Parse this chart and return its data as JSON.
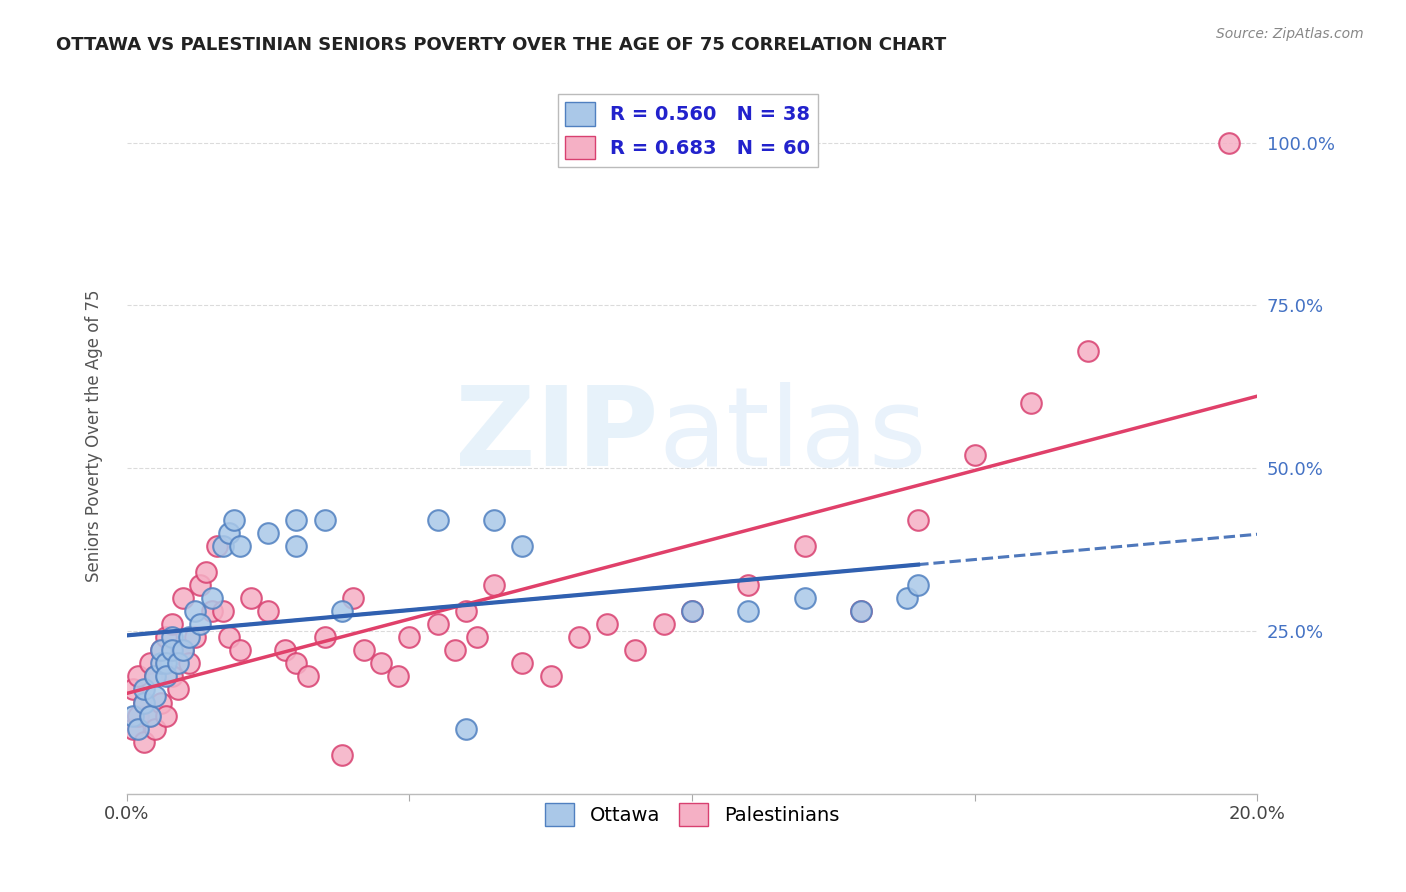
{
  "title": "OTTAWA VS PALESTINIAN SENIORS POVERTY OVER THE AGE OF 75 CORRELATION CHART",
  "source": "Source: ZipAtlas.com",
  "ylabel": "Seniors Poverty Over the Age of 75",
  "xlim": [
    0.0,
    0.2
  ],
  "ylim": [
    0.0,
    1.1
  ],
  "ottawa_R": 0.56,
  "ottawa_N": 38,
  "palestinians_R": 0.683,
  "palestinians_N": 60,
  "ottawa_color": "#aac8e8",
  "ottawa_edge_color": "#5080c0",
  "palestinians_color": "#f5b0c5",
  "palestinians_edge_color": "#d84070",
  "ottawa_line_color": "#3060b0",
  "palestinians_line_color": "#e0406a",
  "background_color": "#ffffff",
  "grid_color": "#cccccc",
  "ottawa_x": [
    0.001,
    0.002,
    0.003,
    0.003,
    0.004,
    0.005,
    0.005,
    0.006,
    0.006,
    0.007,
    0.007,
    0.008,
    0.008,
    0.009,
    0.01,
    0.011,
    0.012,
    0.013,
    0.015,
    0.017,
    0.018,
    0.019,
    0.02,
    0.025,
    0.03,
    0.03,
    0.035,
    0.038,
    0.055,
    0.06,
    0.065,
    0.07,
    0.1,
    0.11,
    0.12,
    0.13,
    0.138,
    0.14
  ],
  "ottawa_y": [
    0.12,
    0.1,
    0.14,
    0.16,
    0.12,
    0.18,
    0.15,
    0.2,
    0.22,
    0.2,
    0.18,
    0.24,
    0.22,
    0.2,
    0.22,
    0.24,
    0.28,
    0.26,
    0.3,
    0.38,
    0.4,
    0.42,
    0.38,
    0.4,
    0.38,
    0.42,
    0.42,
    0.28,
    0.42,
    0.1,
    0.42,
    0.38,
    0.28,
    0.28,
    0.3,
    0.28,
    0.3,
    0.32
  ],
  "palestinians_x": [
    0.001,
    0.001,
    0.002,
    0.002,
    0.003,
    0.003,
    0.004,
    0.004,
    0.005,
    0.005,
    0.006,
    0.006,
    0.007,
    0.007,
    0.008,
    0.008,
    0.009,
    0.01,
    0.01,
    0.011,
    0.012,
    0.013,
    0.014,
    0.015,
    0.016,
    0.017,
    0.018,
    0.02,
    0.022,
    0.025,
    0.028,
    0.03,
    0.032,
    0.035,
    0.038,
    0.04,
    0.042,
    0.045,
    0.048,
    0.05,
    0.055,
    0.058,
    0.06,
    0.062,
    0.065,
    0.07,
    0.075,
    0.08,
    0.085,
    0.09,
    0.095,
    0.1,
    0.11,
    0.12,
    0.13,
    0.14,
    0.15,
    0.16,
    0.17,
    0.195
  ],
  "palestinians_y": [
    0.1,
    0.16,
    0.12,
    0.18,
    0.08,
    0.14,
    0.12,
    0.2,
    0.1,
    0.18,
    0.14,
    0.22,
    0.12,
    0.24,
    0.18,
    0.26,
    0.16,
    0.22,
    0.3,
    0.2,
    0.24,
    0.32,
    0.34,
    0.28,
    0.38,
    0.28,
    0.24,
    0.22,
    0.3,
    0.28,
    0.22,
    0.2,
    0.18,
    0.24,
    0.06,
    0.3,
    0.22,
    0.2,
    0.18,
    0.24,
    0.26,
    0.22,
    0.28,
    0.24,
    0.32,
    0.2,
    0.18,
    0.24,
    0.26,
    0.22,
    0.26,
    0.28,
    0.32,
    0.38,
    0.28,
    0.42,
    0.52,
    0.6,
    0.68,
    1.0
  ]
}
